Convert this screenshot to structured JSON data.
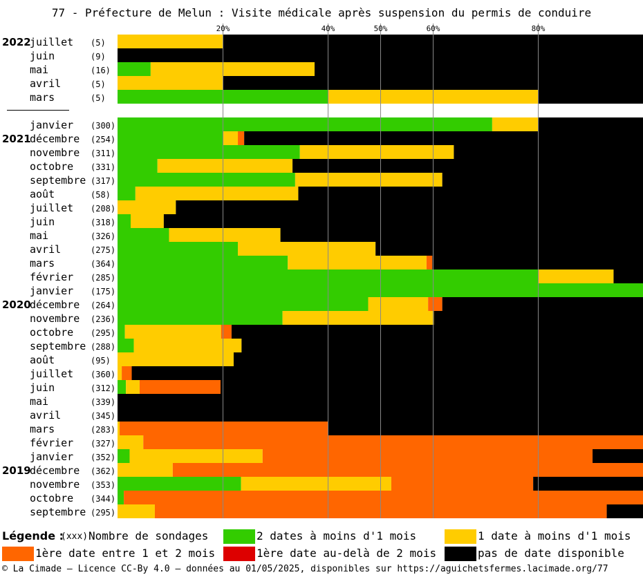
{
  "title": "77 - Préfecture de Melun : Visite médicale après suspension du permis de conduire",
  "legend": {
    "title": "Légende :",
    "count_note": "(xxx)",
    "count_label": "Nombre de sondages",
    "items": [
      {
        "label": "2 dates à moins d'1 mois",
        "color": "#33cc00"
      },
      {
        "label": "1 date à moins d'1 mois",
        "color": "#ffcc00"
      },
      {
        "label": "1ère date entre 1 et 2 mois",
        "color": "#ff6600"
      },
      {
        "label": "1ère date au-delà de 2 mois",
        "color": "#dd0000"
      },
      {
        "label": "pas de date disponible",
        "color": "#000000"
      }
    ]
  },
  "footer": "© La Cimade — Licence CC-By 4.0 — données au 01/05/2025, disponibles sur https://aguichetsfermes.lacimade.org/77",
  "chart_data": {
    "type": "bar",
    "orientation": "horizontal",
    "stacked": true,
    "x_ticks": [
      "20%",
      "40%",
      "50%",
      "60%",
      "80%"
    ],
    "tick_values": [
      20,
      40,
      50,
      60,
      80
    ],
    "xlim": [
      0,
      100
    ],
    "series": [
      {
        "name": "2 dates à moins d'1 mois",
        "color": "#33cc00"
      },
      {
        "name": "1 date à moins d'1 mois",
        "color": "#ffcc00"
      },
      {
        "name": "1ère date entre 1 et 2 mois",
        "color": "#ff6600"
      },
      {
        "name": "1ère date au-delà de 2 mois",
        "color": "#dd0000"
      },
      {
        "name": "pas de date disponible",
        "color": "#000000"
      }
    ],
    "rows": [
      {
        "year": "2022",
        "month": "juillet",
        "n": "(5)",
        "v": [
          0,
          20,
          0,
          0,
          80
        ]
      },
      {
        "year": "",
        "month": "juin",
        "n": "(9)",
        "v": [
          0,
          0,
          0,
          0,
          100
        ]
      },
      {
        "year": "",
        "month": "mai",
        "n": "(16)",
        "v": [
          6.3,
          31.2,
          0,
          0,
          62.5
        ]
      },
      {
        "year": "",
        "month": "avril",
        "n": "(5)",
        "v": [
          0,
          20,
          0,
          0,
          80
        ]
      },
      {
        "year": "",
        "month": "mars",
        "n": "(5)",
        "v": [
          40,
          40,
          0,
          0,
          20
        ]
      },
      {
        "separator": true
      },
      {
        "year": "",
        "month": "janvier",
        "n": "(300)",
        "v": [
          71.3,
          8.7,
          0,
          0,
          20
        ]
      },
      {
        "year": "2021",
        "month": "décembre",
        "n": "(254)",
        "v": [
          20.1,
          2.8,
          1.2,
          0,
          75.9
        ]
      },
      {
        "year": "",
        "month": "novembre",
        "n": "(311)",
        "v": [
          34.7,
          29.3,
          0,
          0,
          36
        ]
      },
      {
        "year": "",
        "month": "octobre",
        "n": "(331)",
        "v": [
          7.6,
          25.7,
          0,
          0,
          66.7
        ]
      },
      {
        "year": "",
        "month": "septembre",
        "n": "(317)",
        "v": [
          33.8,
          28,
          0,
          0,
          38.2
        ]
      },
      {
        "year": "",
        "month": "août",
        "n": "(58)",
        "v": [
          3.4,
          31,
          0,
          0,
          65.6
        ]
      },
      {
        "year": "",
        "month": "juillet",
        "n": "(208)",
        "v": [
          0,
          11.1,
          0,
          0,
          88.9
        ]
      },
      {
        "year": "",
        "month": "juin",
        "n": "(318)",
        "v": [
          2.5,
          6.3,
          0,
          0,
          91.2
        ]
      },
      {
        "year": "",
        "month": "mai",
        "n": "(326)",
        "v": [
          9.8,
          21.2,
          0,
          0,
          69
        ]
      },
      {
        "year": "",
        "month": "avril",
        "n": "(275)",
        "v": [
          22.9,
          26.2,
          0,
          0,
          50.9
        ]
      },
      {
        "year": "",
        "month": "mars",
        "n": "(364)",
        "v": [
          32.4,
          26.4,
          1.1,
          0,
          40.1
        ]
      },
      {
        "year": "",
        "month": "février",
        "n": "(285)",
        "v": [
          80,
          14.4,
          0,
          0,
          5.6
        ]
      },
      {
        "year": "",
        "month": "janvier",
        "n": "(175)",
        "v": [
          100,
          0,
          0,
          0,
          0
        ]
      },
      {
        "year": "2020",
        "month": "décembre",
        "n": "(264)",
        "v": [
          47.7,
          11.4,
          2.7,
          0,
          38.2
        ]
      },
      {
        "year": "",
        "month": "novembre",
        "n": "(236)",
        "v": [
          31.4,
          28.8,
          0,
          0,
          39.8
        ]
      },
      {
        "year": "",
        "month": "octobre",
        "n": "(295)",
        "v": [
          1.4,
          18.3,
          2,
          0,
          78.3
        ]
      },
      {
        "year": "",
        "month": "septembre",
        "n": "(288)",
        "v": [
          3.1,
          20.5,
          0,
          0,
          76.4
        ]
      },
      {
        "year": "",
        "month": "août",
        "n": "(95)",
        "v": [
          0,
          22.1,
          0,
          0,
          77.9
        ]
      },
      {
        "year": "",
        "month": "juillet",
        "n": "(360)",
        "v": [
          0,
          0.8,
          1.9,
          0,
          97.3
        ]
      },
      {
        "year": "",
        "month": "juin",
        "n": "(312)",
        "v": [
          1.6,
          2.6,
          15.4,
          0,
          80.4
        ]
      },
      {
        "year": "",
        "month": "mai",
        "n": "(339)",
        "v": [
          0,
          0,
          0,
          0,
          100
        ]
      },
      {
        "year": "",
        "month": "avril",
        "n": "(345)",
        "v": [
          0,
          0,
          0,
          0,
          100
        ]
      },
      {
        "year": "",
        "month": "mars",
        "n": "(283)",
        "v": [
          0,
          0.4,
          39.6,
          0,
          60
        ]
      },
      {
        "year": "",
        "month": "février",
        "n": "(327)",
        "v": [
          0,
          4.9,
          95.1,
          0,
          0
        ]
      },
      {
        "year": "",
        "month": "janvier",
        "n": "(352)",
        "v": [
          2.3,
          25.3,
          62.8,
          0,
          9.6
        ]
      },
      {
        "year": "2019",
        "month": "décembre",
        "n": "(362)",
        "v": [
          0,
          10.5,
          89.5,
          0,
          0
        ]
      },
      {
        "year": "",
        "month": "novembre",
        "n": "(353)",
        "v": [
          23.5,
          28.6,
          27,
          0,
          20.9
        ]
      },
      {
        "year": "",
        "month": "octobre",
        "n": "(344)",
        "v": [
          1.2,
          0,
          98.8,
          0,
          0
        ]
      },
      {
        "year": "",
        "month": "septembre",
        "n": "(295)",
        "v": [
          0,
          7.1,
          86,
          0,
          6.9
        ]
      }
    ]
  }
}
